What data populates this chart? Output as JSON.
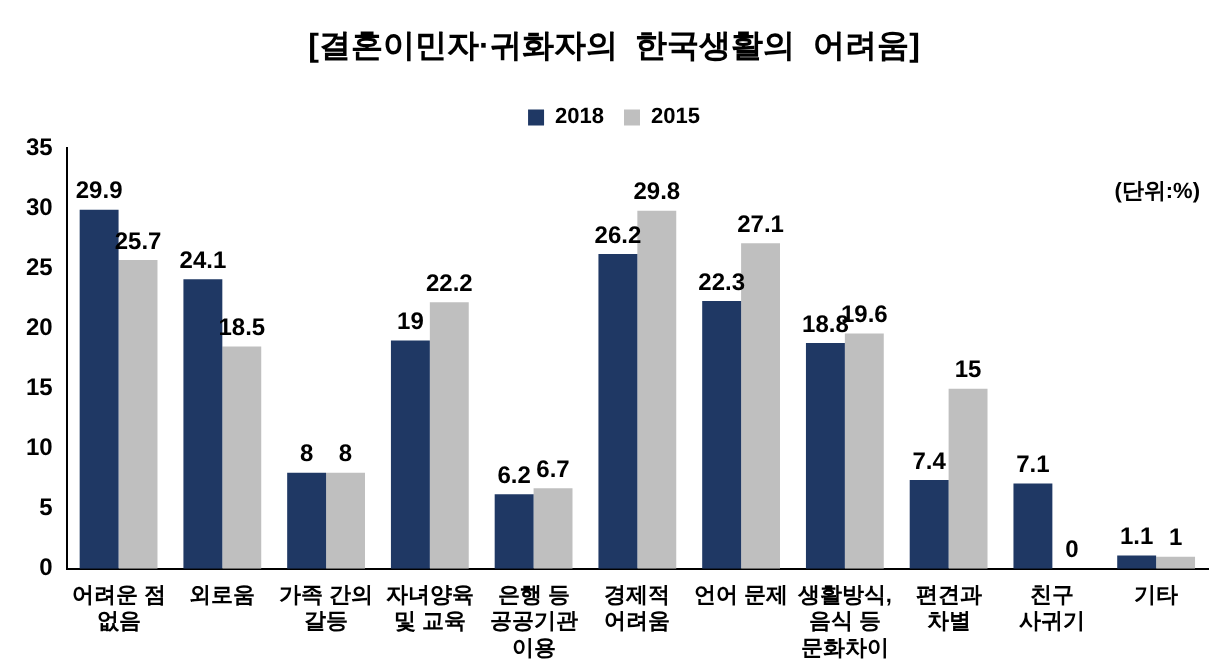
{
  "chart_data": {
    "type": "bar",
    "title": "[결혼이민자·귀화자의  한국생활의  어려움]",
    "categories": [
      "어려운 점\n없음",
      "외로움",
      "가족 간의\n갈등",
      "자녀양육\n및 교육",
      "은행 등\n공공기관\n이용",
      "경제적\n어려움",
      "언어 문제",
      "생활방식,\n음식 등\n문화차이",
      "편견과\n차별",
      "친구\n사귀기",
      "기타"
    ],
    "series": [
      {
        "name": "2018",
        "color": "#1f3864",
        "values": [
          29.9,
          24.1,
          8,
          19,
          6.2,
          26.2,
          22.3,
          18.8,
          7.4,
          7.1,
          1.1
        ]
      },
      {
        "name": "2015",
        "color": "#bfbfbf",
        "values": [
          25.7,
          18.5,
          8,
          22.2,
          6.7,
          29.8,
          27.1,
          19.6,
          15,
          0,
          1
        ]
      }
    ],
    "ylim": [
      0,
      35
    ],
    "yticks": [
      0,
      5,
      10,
      15,
      20,
      25,
      30,
      35
    ],
    "grid": false,
    "legend": "top",
    "data_labels": true,
    "annotations": [
      "(단위:%)"
    ]
  }
}
